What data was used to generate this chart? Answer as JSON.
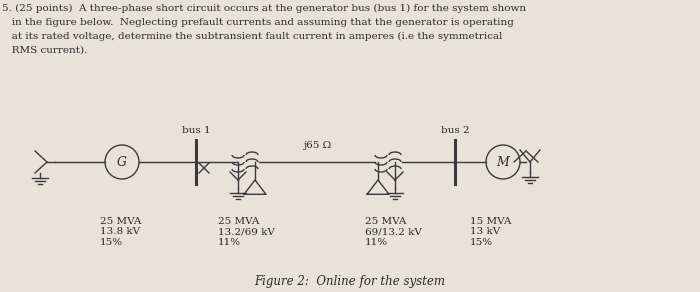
{
  "bg_color": "#e8e3d8",
  "text_color": "#2a2a2a",
  "line_color": "#3a3a3a",
  "figure_caption": "Figure 2:  Online for the system",
  "bus1_label": "bus 1",
  "bus2_label": "bus 2",
  "impedance_label": "j65 Ω",
  "gen_label": "G",
  "motor_label": "M",
  "label1": "25 MVA\n13.8 kV\n15%",
  "label2": "25 MVA\n13.2/69 kV\n11%",
  "label3": "25 MVA\n69/13.2 kV\n11%",
  "label4": "15 MVA\n13 kV\n15%",
  "title_line1": "5. (25 points)  A three-phase short circuit occurs at the generator bus (bus 1) for the system shown",
  "title_line2": "   in the figure below.  Neglecting prefault currents and assuming that the generator is operating",
  "title_line3": "   at its rated voltage, determine the subtransient fault current in amperes (i.e the symmetrical",
  "title_line4": "   RMS current)."
}
